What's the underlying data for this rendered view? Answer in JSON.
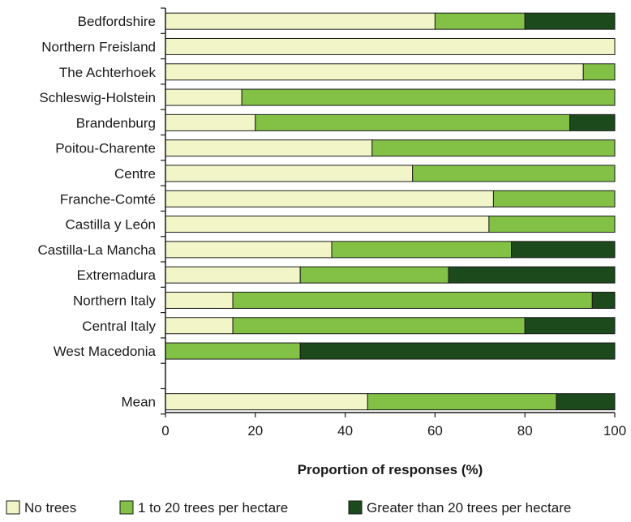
{
  "chart_data": {
    "type": "bar",
    "orientation": "horizontal",
    "stacked": true,
    "categories": [
      "Bedfordshire",
      "Northern Freisland",
      "The Achterhoek",
      "Schleswig-Holstein",
      "Brandenburg",
      "Poitou-Charente",
      "Centre",
      "Franche-Comté",
      "Castilla y León",
      "Castilla-La Mancha",
      "Extremadura",
      "Northern Italy",
      "Central Italy",
      "West Macedonia",
      "",
      "Mean"
    ],
    "series": [
      {
        "name": "No trees",
        "color": "#f2f5c8",
        "values": [
          60,
          100,
          93,
          17,
          20,
          46,
          55,
          73,
          72,
          37,
          30,
          15,
          15,
          0,
          null,
          45
        ]
      },
      {
        "name": "1 to 20 trees per hectare",
        "color": "#82c145",
        "values": [
          20,
          0,
          7,
          83,
          70,
          54,
          45,
          27,
          28,
          40,
          33,
          80,
          65,
          30,
          null,
          42
        ]
      },
      {
        "name": "Greater than 20 trees per hectare",
        "color": "#1c4a1c",
        "values": [
          20,
          0,
          0,
          0,
          10,
          0,
          0,
          0,
          0,
          23,
          37,
          5,
          20,
          70,
          null,
          13
        ]
      }
    ],
    "xlabel": "Proportion of responses (%)",
    "ylabel": "",
    "xlim": [
      0,
      100
    ],
    "xticks": [
      "0",
      "20",
      "40",
      "60",
      "80",
      "100"
    ],
    "grid": false,
    "legend_position": "bottom"
  }
}
